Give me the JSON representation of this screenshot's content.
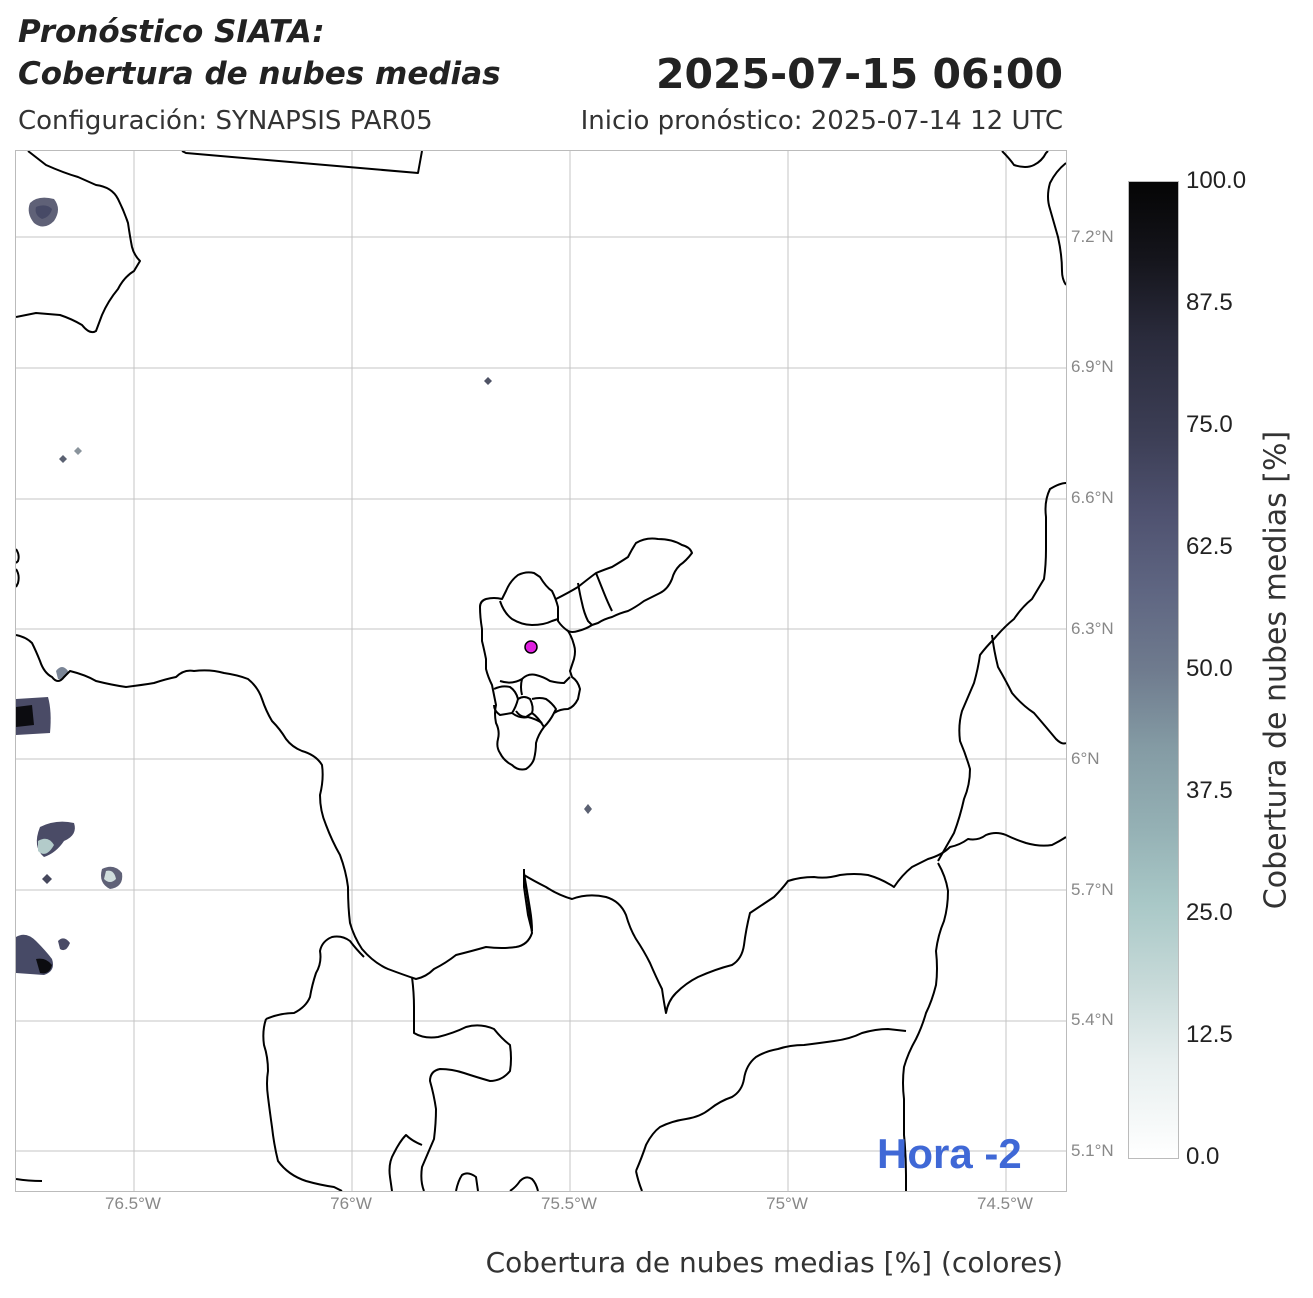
{
  "header": {
    "title_line1": "Pronóstico SIATA:",
    "title_line2": "Cobertura de nubes medias",
    "datetime": "2025-07-15 06:00",
    "config": "Configuración: SYNAPSIS PAR05",
    "init": "Inicio pronóstico: 2025-07-14 12 UTC"
  },
  "map": {
    "lat_labels": [
      "7.2°N",
      "6.9°N",
      "6.6°N",
      "6.3°N",
      "6°N",
      "5.7°N",
      "5.4°N",
      "5.1°N"
    ],
    "lon_labels": [
      "76.5°W",
      "76°W",
      "75.5°W",
      "75°W",
      "74.5°W"
    ],
    "marker_color": "#e020e0",
    "hour_label": "Hora -2"
  },
  "colorbar": {
    "ticks": [
      "100.0",
      "87.5",
      "75.0",
      "62.5",
      "50.0",
      "37.5",
      "25.0",
      "12.5",
      "0.0"
    ],
    "title": "Cobertura de nubes medias [%]"
  },
  "footer": {
    "caption": "Cobertura de nubes medias [%] (colores)"
  }
}
